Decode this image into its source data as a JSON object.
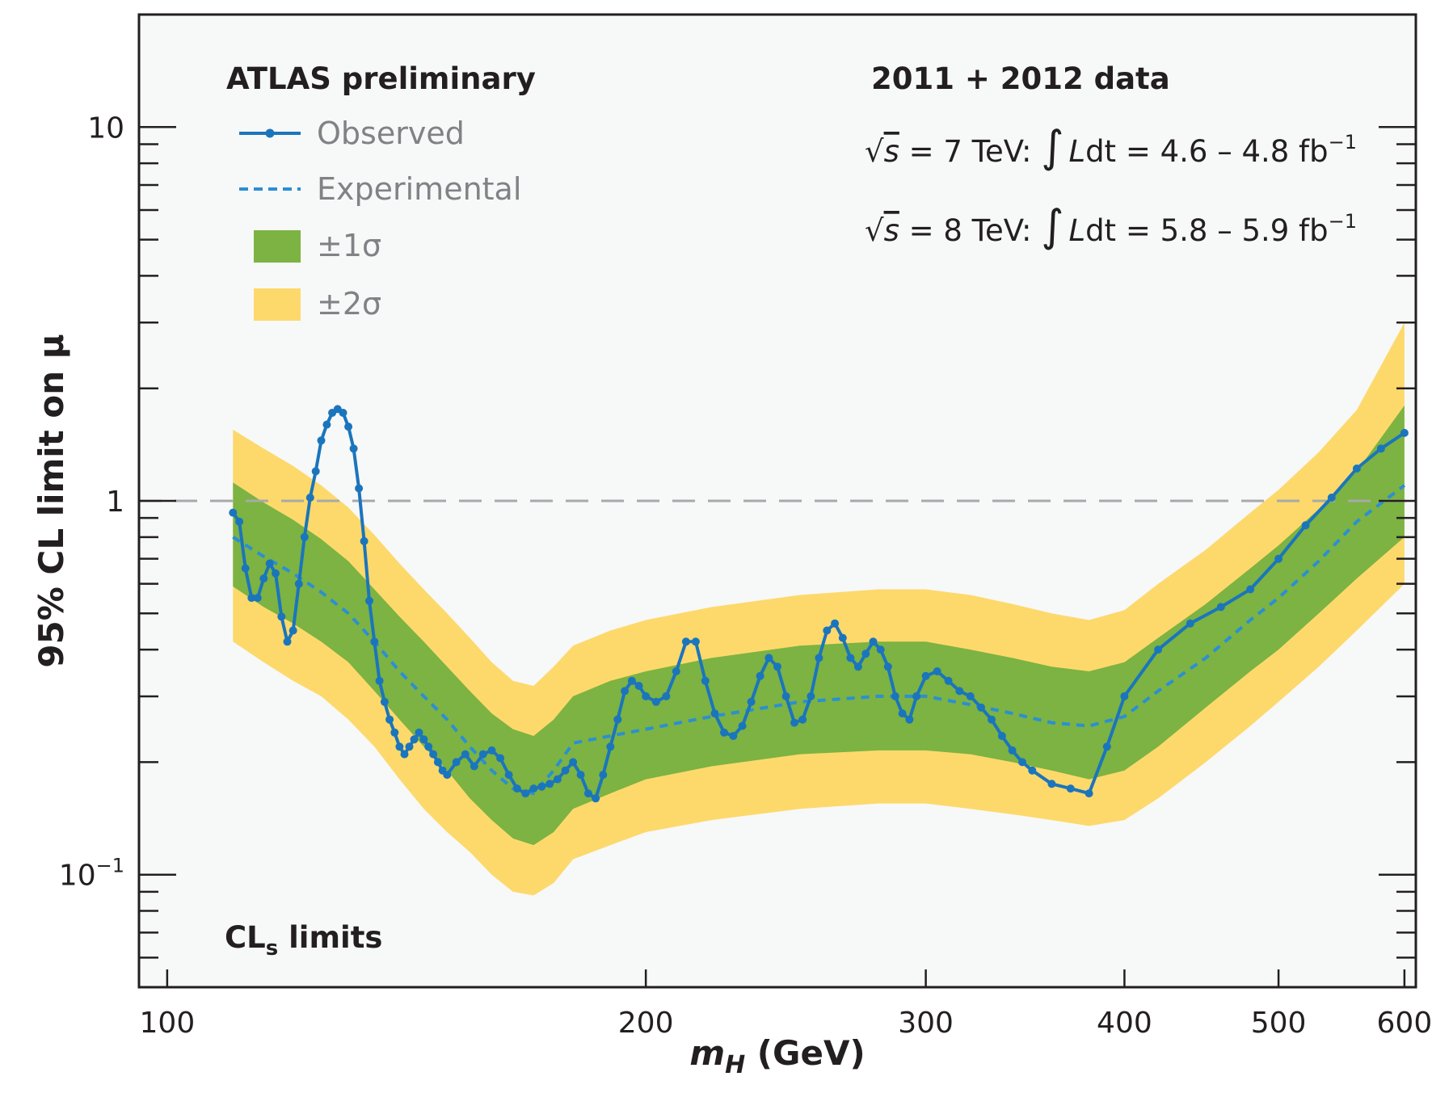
{
  "chart_data": {
    "type": "line",
    "xlabel": {
      "main": "m",
      "sub": "H",
      "unit": " (GeV)"
    },
    "ylabel": "95% CL limit on μ",
    "x_scale": "log",
    "y_scale": "log",
    "xlim": [
      96,
      610
    ],
    "ylim": [
      0.05,
      20
    ],
    "x_ticks": [
      {
        "value": 100,
        "label": "100"
      },
      {
        "value": 200,
        "label": "200"
      },
      {
        "value": 300,
        "label": "300"
      },
      {
        "value": 400,
        "label": "400"
      },
      {
        "value": 500,
        "label": "500"
      },
      {
        "value": 600,
        "label": "600"
      }
    ],
    "y_ticks": [
      {
        "value": 10,
        "base": "10",
        "exp": ""
      },
      {
        "value": 1,
        "base": "1",
        "exp": ""
      },
      {
        "value": 0.1,
        "base": "10",
        "exp": "−1"
      }
    ],
    "reference_line": {
      "y": 1,
      "style": "dashed",
      "color": "#a7a9ac"
    },
    "colors": {
      "observed": "#1b75bc",
      "expected": "#2b8fd4",
      "band_1sigma": "#7cb342",
      "band_2sigma": "#fdd96b",
      "background": "#f7f8f8",
      "frame": "#231f20"
    },
    "bands": {
      "x": [
        110,
        115,
        120,
        125,
        130,
        135,
        140,
        145,
        150,
        155,
        160,
        165,
        170,
        175,
        180,
        190,
        200,
        220,
        250,
        280,
        300,
        320,
        340,
        360,
        380,
        400,
        420,
        450,
        480,
        500,
        530,
        560,
        600
      ],
      "minus2sigma": [
        0.42,
        0.37,
        0.33,
        0.3,
        0.26,
        0.22,
        0.18,
        0.15,
        0.13,
        0.115,
        0.1,
        0.09,
        0.088,
        0.095,
        0.11,
        0.12,
        0.13,
        0.14,
        0.15,
        0.155,
        0.155,
        0.15,
        0.145,
        0.14,
        0.135,
        0.14,
        0.16,
        0.2,
        0.25,
        0.29,
        0.36,
        0.45,
        0.6
      ],
      "minus1sigma": [
        0.59,
        0.52,
        0.47,
        0.42,
        0.37,
        0.31,
        0.26,
        0.22,
        0.19,
        0.16,
        0.14,
        0.125,
        0.12,
        0.13,
        0.15,
        0.165,
        0.18,
        0.195,
        0.21,
        0.215,
        0.215,
        0.21,
        0.2,
        0.19,
        0.18,
        0.19,
        0.22,
        0.28,
        0.35,
        0.4,
        0.5,
        0.62,
        0.8
      ],
      "plus1sigma": [
        1.12,
        0.99,
        0.89,
        0.79,
        0.69,
        0.58,
        0.49,
        0.42,
        0.36,
        0.31,
        0.27,
        0.245,
        0.235,
        0.26,
        0.3,
        0.33,
        0.35,
        0.38,
        0.41,
        0.42,
        0.42,
        0.4,
        0.38,
        0.36,
        0.35,
        0.37,
        0.43,
        0.53,
        0.66,
        0.76,
        0.95,
        1.2,
        1.8
      ],
      "plus2sigma": [
        1.55,
        1.38,
        1.24,
        1.1,
        0.96,
        0.81,
        0.68,
        0.58,
        0.5,
        0.43,
        0.37,
        0.33,
        0.32,
        0.36,
        0.41,
        0.45,
        0.48,
        0.52,
        0.56,
        0.58,
        0.58,
        0.56,
        0.53,
        0.5,
        0.48,
        0.51,
        0.6,
        0.74,
        0.93,
        1.07,
        1.35,
        1.75,
        3.0
      ]
    },
    "series": [
      {
        "name": "Experimental",
        "style": "dashed",
        "x": [
          110,
          115,
          120,
          125,
          130,
          135,
          140,
          145,
          150,
          155,
          160,
          165,
          170,
          175,
          180,
          190,
          200,
          220,
          250,
          280,
          300,
          320,
          340,
          360,
          380,
          400,
          420,
          450,
          480,
          500,
          530,
          560,
          600
        ],
        "y": [
          0.8,
          0.71,
          0.64,
          0.57,
          0.5,
          0.42,
          0.35,
          0.3,
          0.26,
          0.22,
          0.19,
          0.17,
          0.165,
          0.19,
          0.225,
          0.235,
          0.245,
          0.265,
          0.29,
          0.3,
          0.3,
          0.285,
          0.27,
          0.255,
          0.25,
          0.265,
          0.31,
          0.38,
          0.48,
          0.55,
          0.69,
          0.88,
          1.1
        ]
      },
      {
        "name": "Observed",
        "style": "solid-markers",
        "x": [
          110,
          111,
          112,
          113,
          114,
          115,
          116,
          117,
          118,
          119,
          120,
          121,
          122,
          123,
          124,
          125,
          126,
          127,
          128,
          129,
          130,
          131,
          132,
          133,
          134,
          135,
          136,
          137,
          138,
          139,
          140,
          141,
          142,
          143,
          144,
          145,
          146,
          147,
          148,
          149,
          150,
          152,
          154,
          156,
          158,
          160,
          162,
          164,
          166,
          168,
          170,
          172,
          174,
          176,
          178,
          180,
          182,
          184,
          186,
          188,
          190,
          192,
          194,
          196,
          198,
          200,
          203,
          206,
          209,
          212,
          215,
          218,
          221,
          224,
          227,
          230,
          233,
          236,
          239,
          242,
          245,
          248,
          251,
          254,
          257,
          260,
          263,
          266,
          269,
          272,
          275,
          278,
          281,
          284,
          287,
          290,
          293,
          296,
          300,
          305,
          310,
          315,
          320,
          325,
          330,
          335,
          340,
          345,
          350,
          360,
          370,
          380,
          390,
          400,
          420,
          440,
          460,
          480,
          500,
          520,
          540,
          560,
          580,
          600
        ],
        "y": [
          0.93,
          0.88,
          0.66,
          0.55,
          0.55,
          0.62,
          0.68,
          0.64,
          0.49,
          0.42,
          0.45,
          0.6,
          0.8,
          1.02,
          1.2,
          1.45,
          1.6,
          1.72,
          1.76,
          1.72,
          1.58,
          1.38,
          1.08,
          0.78,
          0.54,
          0.42,
          0.33,
          0.29,
          0.26,
          0.24,
          0.22,
          0.21,
          0.22,
          0.23,
          0.24,
          0.23,
          0.22,
          0.21,
          0.2,
          0.19,
          0.185,
          0.2,
          0.21,
          0.195,
          0.21,
          0.215,
          0.205,
          0.185,
          0.17,
          0.165,
          0.17,
          0.172,
          0.175,
          0.18,
          0.19,
          0.2,
          0.185,
          0.165,
          0.16,
          0.185,
          0.22,
          0.26,
          0.31,
          0.33,
          0.32,
          0.3,
          0.29,
          0.3,
          0.35,
          0.42,
          0.42,
          0.33,
          0.27,
          0.24,
          0.235,
          0.25,
          0.29,
          0.34,
          0.38,
          0.36,
          0.3,
          0.255,
          0.26,
          0.3,
          0.38,
          0.45,
          0.47,
          0.43,
          0.38,
          0.36,
          0.39,
          0.42,
          0.4,
          0.36,
          0.3,
          0.27,
          0.26,
          0.3,
          0.34,
          0.35,
          0.33,
          0.31,
          0.3,
          0.28,
          0.26,
          0.235,
          0.215,
          0.2,
          0.19,
          0.175,
          0.17,
          0.165,
          0.22,
          0.3,
          0.4,
          0.47,
          0.52,
          0.58,
          0.7,
          0.86,
          1.02,
          1.22,
          1.38,
          1.52
        ]
      }
    ],
    "legend": {
      "title": "ATLAS preliminary",
      "placement": "top-left",
      "items": [
        {
          "label": "Observed",
          "type": "observed"
        },
        {
          "label": "Experimental",
          "type": "expected"
        },
        {
          "label": "±1σ",
          "type": "band1"
        },
        {
          "label": "±2σ",
          "type": "band2"
        }
      ]
    },
    "annotations": {
      "data_label": "2011 + 2012 data",
      "lumi_7": {
        "sqrt": "√",
        "s": "s",
        "energy": " = 7 TeV: ",
        "integral": "∫",
        "L": "L",
        "dt": "dt",
        "value": " = 4.6 – 4.8 fb",
        "exp": "−1"
      },
      "lumi_8": {
        "sqrt": "√",
        "s": "s",
        "energy": " = 8 TeV: ",
        "integral": "∫",
        "L": "L",
        "dt": "dt",
        "value": " = 5.8 – 5.9 fb",
        "exp": "−1"
      },
      "cls": {
        "main": "CL",
        "sub": "s",
        "rest": " limits"
      }
    }
  }
}
